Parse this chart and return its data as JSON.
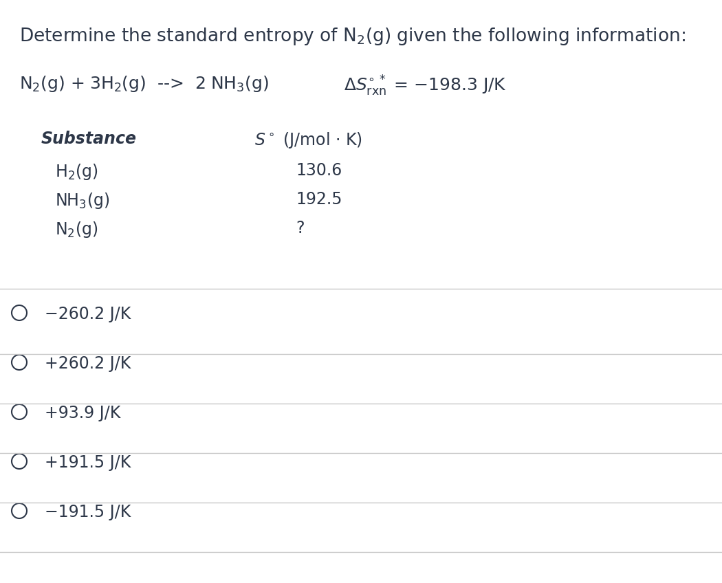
{
  "title": "Determine the standard entropy of N₂(g) given the following information:",
  "bg_color": "#ffffff",
  "text_color": "#2d3748",
  "line_color": "#c8c8c8",
  "title_fontsize": 19,
  "reaction_fontsize": 18,
  "table_header_fontsize": 17,
  "table_data_fontsize": 17,
  "choice_fontsize": 17,
  "choices": [
    "−260.2 J/K",
    "+260.2 J/K",
    "+93.9 J/K",
    "+191.5 J/K",
    "−191.5 J/K"
  ],
  "table_rows_substance": [
    "H₂(g)",
    "NH₃(g)",
    "N₂(g)"
  ],
  "table_rows_value": [
    "130.6",
    "192.5",
    "?"
  ]
}
